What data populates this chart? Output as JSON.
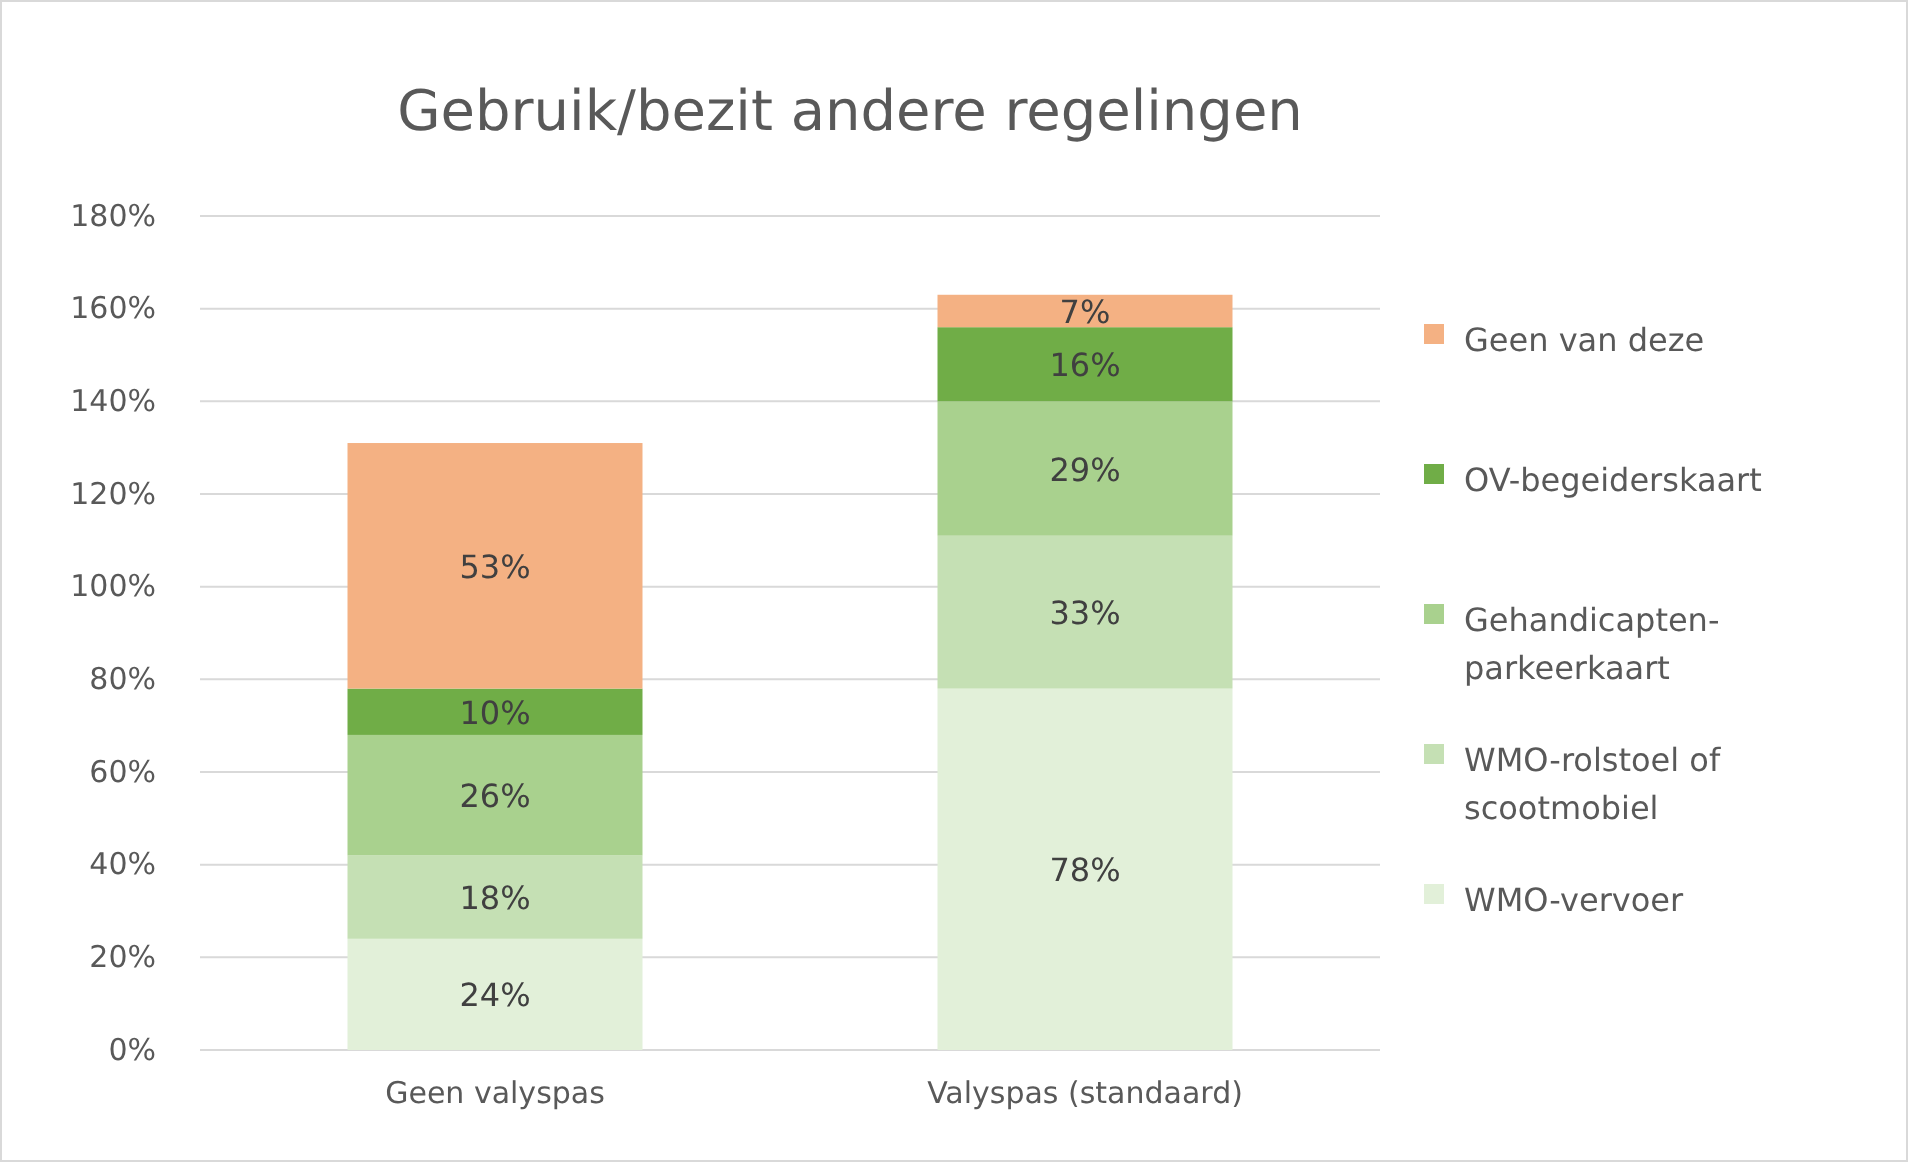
{
  "chart_data": {
    "type": "bar",
    "stacked": true,
    "title": "Gebruik/bezit andere regelingen",
    "categories": [
      "Geen valyspas",
      "Valyspas (standaard)"
    ],
    "series": [
      {
        "name": "WMO-vervoer",
        "color": "#e2f0d9",
        "values": [
          24,
          78
        ],
        "value_labels": [
          "24%",
          "78%"
        ]
      },
      {
        "name": "WMO-rolstoel of scootmobiel",
        "color": "#c5e0b4",
        "values": [
          18,
          33
        ],
        "value_labels": [
          "18%",
          "33%"
        ]
      },
      {
        "name": "Gehandicapten-parkeerkaart",
        "color": "#a9d18e",
        "values": [
          26,
          29
        ],
        "value_labels": [
          "26%",
          "29%"
        ]
      },
      {
        "name": "OV-begeiderskaart",
        "color": "#70ad47",
        "values": [
          10,
          16
        ],
        "value_labels": [
          "10%",
          "16%"
        ]
      },
      {
        "name": "Geen van deze",
        "color": "#f4b183",
        "values": [
          53,
          7
        ],
        "value_labels": [
          "53%",
          "7%"
        ]
      }
    ],
    "ylim": [
      0,
      180
    ],
    "yticks": [
      {
        "value": 0,
        "label": "0%"
      },
      {
        "value": 20,
        "label": "20%"
      },
      {
        "value": 40,
        "label": "40%"
      },
      {
        "value": 60,
        "label": "60%"
      },
      {
        "value": 80,
        "label": "80%"
      },
      {
        "value": 100,
        "label": "100%"
      },
      {
        "value": 120,
        "label": "120%"
      },
      {
        "value": 140,
        "label": "140%"
      },
      {
        "value": 160,
        "label": "160%"
      },
      {
        "value": 180,
        "label": "180%"
      }
    ],
    "grid": "y",
    "legend": "right"
  }
}
